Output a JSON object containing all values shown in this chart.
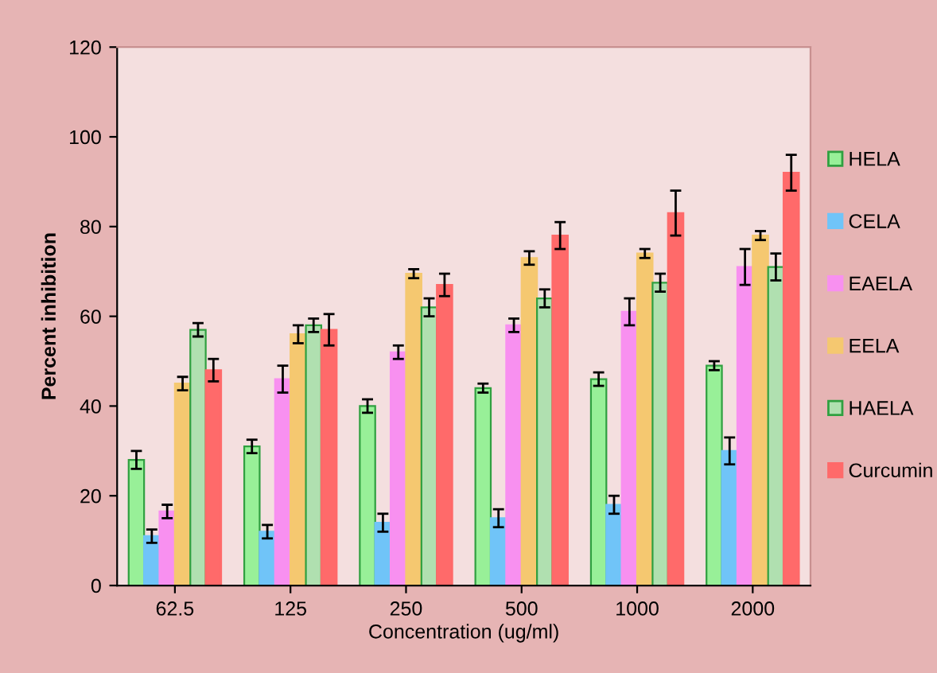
{
  "chart_data": {
    "type": "bar",
    "xlabel": "Concentration (ug/ml)",
    "ylabel": "Percent inhibition",
    "categories": [
      "62.5",
      "125",
      "250",
      "500",
      "1000",
      "2000"
    ],
    "series": [
      {
        "name": "HELA",
        "color": "#98f098",
        "values": [
          28,
          31,
          40,
          44,
          46,
          49
        ],
        "errors": [
          2,
          1.5,
          1.5,
          1,
          1.5,
          1
        ]
      },
      {
        "name": "CELA",
        "color": "#70c4f8",
        "values": [
          11,
          12,
          14,
          15,
          18,
          30
        ],
        "errors": [
          1.5,
          1.5,
          2,
          2,
          2,
          3
        ]
      },
      {
        "name": "EAELA",
        "color": "#f890f0",
        "values": [
          16.5,
          46,
          52,
          58,
          61,
          71
        ],
        "errors": [
          1.5,
          3,
          1.5,
          1.5,
          3,
          4
        ]
      },
      {
        "name": "EELA",
        "color": "#f5c870",
        "values": [
          45,
          56,
          69.5,
          73,
          74,
          78
        ],
        "errors": [
          1.5,
          2,
          1,
          1.5,
          1,
          1
        ]
      },
      {
        "name": "HAELA",
        "color": "#b0e0b0",
        "values": [
          57,
          58,
          62,
          64,
          67.5,
          71
        ],
        "errors": [
          1.5,
          1.5,
          2,
          2,
          2,
          3
        ]
      },
      {
        "name": "Curcumin",
        "color": "#ff6a6a",
        "values": [
          48,
          57,
          67,
          78,
          83,
          92
        ],
        "errors": [
          2.5,
          3.5,
          2.5,
          3,
          5,
          4
        ]
      }
    ],
    "ylim": [
      0,
      120
    ],
    "yticks": [
      0,
      20,
      40,
      60,
      80,
      100,
      120
    ],
    "legend": "right",
    "grid": false
  }
}
